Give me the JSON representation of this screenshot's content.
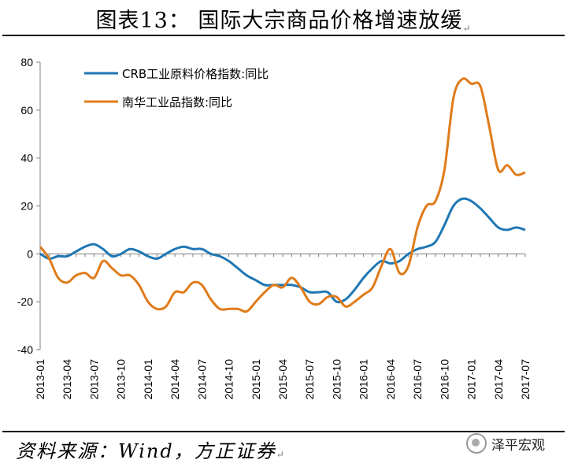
{
  "header": {
    "title": "图表13：  国际大宗商品价格增速放缓"
  },
  "footer": {
    "source": "资料来源：Wind，方正证券",
    "brand": "泽平宏观"
  },
  "colors": {
    "crb": "#1f77b4",
    "nanhua": "#e07b1a",
    "axis": "#808080"
  },
  "chart_data": {
    "type": "line",
    "title": "",
    "xlabel": "",
    "ylabel": "",
    "ylim": [
      -40,
      80
    ],
    "yticks": [
      -40,
      -20,
      0,
      20,
      40,
      60,
      80
    ],
    "xticklabels": [
      "2013-01",
      "2013-04",
      "2013-07",
      "2013-10",
      "2014-01",
      "2014-04",
      "2014-07",
      "2014-10",
      "2015-01",
      "2015-04",
      "2015-07",
      "2015-10",
      "2016-01",
      "2016-04",
      "2016-07",
      "2016-10",
      "2017-01",
      "2017-04",
      "2017-07"
    ],
    "x": [
      "2013-01",
      "2013-02",
      "2013-03",
      "2013-04",
      "2013-05",
      "2013-06",
      "2013-07",
      "2013-08",
      "2013-09",
      "2013-10",
      "2013-11",
      "2013-12",
      "2014-01",
      "2014-02",
      "2014-03",
      "2014-04",
      "2014-05",
      "2014-06",
      "2014-07",
      "2014-08",
      "2014-09",
      "2014-10",
      "2014-11",
      "2014-12",
      "2015-01",
      "2015-02",
      "2015-03",
      "2015-04",
      "2015-05",
      "2015-06",
      "2015-07",
      "2015-08",
      "2015-09",
      "2015-10",
      "2015-11",
      "2015-12",
      "2016-01",
      "2016-02",
      "2016-03",
      "2016-04",
      "2016-05",
      "2016-06",
      "2016-07",
      "2016-08",
      "2016-09",
      "2016-10",
      "2016-11",
      "2016-12",
      "2017-01",
      "2017-02",
      "2017-03",
      "2017-04",
      "2017-05",
      "2017-06",
      "2017-07"
    ],
    "legend_position": "top-left",
    "grid": false,
    "series": [
      {
        "name": "CRB工业原料价格指数:同比",
        "color": "#1f77b4",
        "values": [
          0,
          -2,
          -1,
          -1,
          1,
          3,
          4,
          2,
          -1,
          0,
          2,
          1,
          -1,
          -2,
          0,
          2,
          3,
          2,
          2,
          0,
          -1,
          -3,
          -6,
          -9,
          -11,
          -13,
          -13,
          -13,
          -13,
          -14,
          -16,
          -16,
          -16,
          -20,
          -19,
          -15,
          -10,
          -6,
          -3,
          -4,
          -3,
          0,
          2,
          3,
          5,
          12,
          20,
          23,
          22,
          19,
          15,
          11,
          10,
          11,
          10
        ]
      },
      {
        "name": "南华工业品指数:同比",
        "color": "#e07b1a",
        "values": [
          3,
          -2,
          -10,
          -12,
          -9,
          -8,
          -10,
          -3,
          -6,
          -9,
          -9,
          -13,
          -20,
          -23,
          -22,
          -16,
          -16,
          -12,
          -13,
          -19,
          -23,
          -23,
          -23,
          -24,
          -20,
          -16,
          -13,
          -14,
          -10,
          -14,
          -20,
          -21,
          -18,
          -18,
          -22,
          -20,
          -17,
          -14,
          -5,
          2,
          -8,
          -5,
          11,
          20,
          22,
          35,
          65,
          73,
          71,
          70,
          53,
          35,
          37,
          33,
          34
        ]
      }
    ]
  }
}
